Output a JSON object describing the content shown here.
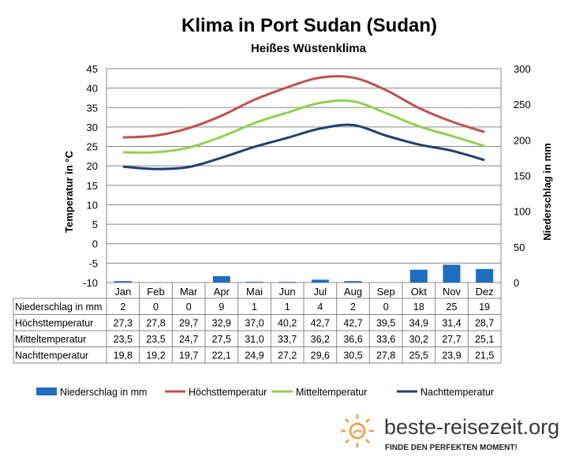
{
  "chart_data": {
    "type": "line",
    "title": "Klima in Port Sudan (Sudan)",
    "subtitle": "Heißes Wüstenklima",
    "categories": [
      "Jan",
      "Feb",
      "Mar",
      "Apr",
      "Mai",
      "Jun",
      "Jul",
      "Aug",
      "Sep",
      "Okt",
      "Nov",
      "Dez"
    ],
    "ylabel": "Temperatur in °C",
    "y2label": "Niederschlag in mm",
    "ylim": [
      -10,
      45
    ],
    "yticks": [
      45,
      40,
      35,
      30,
      25,
      20,
      15,
      10,
      5,
      0,
      -5,
      -10
    ],
    "y2lim": [
      0,
      300
    ],
    "y2ticks": [
      300,
      250,
      200,
      150,
      100,
      50,
      0
    ],
    "grid": true,
    "legend_position": "bottom",
    "series": [
      {
        "name": "Niederschlag in mm",
        "kind": "bar",
        "axis": "right",
        "color": "#1F6DBE",
        "values": [
          2,
          0,
          0,
          9,
          1,
          1,
          4,
          2,
          0,
          18,
          25,
          19
        ],
        "display": [
          "2",
          "0",
          "0",
          "9",
          "1",
          "1",
          "4",
          "2",
          "0",
          "18",
          "25",
          "19"
        ]
      },
      {
        "name": "Höchsttemperatur",
        "kind": "line",
        "axis": "left",
        "color": "#C0504D",
        "values": [
          27.3,
          27.8,
          29.7,
          32.9,
          37.0,
          40.2,
          42.7,
          42.7,
          39.5,
          34.9,
          31.4,
          28.7
        ],
        "display": [
          "27,3",
          "27,8",
          "29,7",
          "32,9",
          "37,0",
          "40,2",
          "42,7",
          "42,7",
          "39,5",
          "34,9",
          "31,4",
          "28,7"
        ]
      },
      {
        "name": "Mitteltemperatur",
        "kind": "line",
        "axis": "left",
        "color": "#92D050",
        "values": [
          23.5,
          23.5,
          24.7,
          27.5,
          31.0,
          33.7,
          36.2,
          36.6,
          33.6,
          30.2,
          27.7,
          25.1
        ],
        "display": [
          "23,5",
          "23,5",
          "24,7",
          "27,5",
          "31,0",
          "33,7",
          "36,2",
          "36,6",
          "33,6",
          "30,2",
          "27,7",
          "25,1"
        ]
      },
      {
        "name": "Nachttemperatur",
        "kind": "line",
        "axis": "left",
        "color": "#1F3F6E",
        "values": [
          19.8,
          19.2,
          19.7,
          22.1,
          24.9,
          27.2,
          29.6,
          30.5,
          27.8,
          25.5,
          23.9,
          21.5
        ],
        "display": [
          "19,8",
          "19,2",
          "19,7",
          "22,1",
          "24,9",
          "27,2",
          "29,6",
          "30,5",
          "27,8",
          "25,5",
          "23,9",
          "21,5"
        ]
      }
    ]
  },
  "branding": {
    "site": "beste-reisezeit.org",
    "tagline": "FINDE DEN PERFEKTEN MOMENT!",
    "logo_icon": "sun-icon",
    "logo_color": "#F39A3C"
  }
}
